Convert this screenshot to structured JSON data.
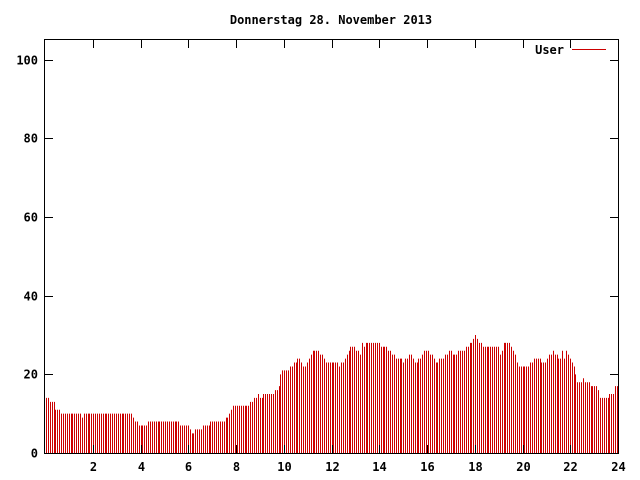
{
  "chart_data": {
    "type": "bar",
    "title": "Donnerstag 28. November 2013",
    "xlabel": "",
    "ylabel": "",
    "xlim": [
      0,
      24
    ],
    "ylim": [
      0,
      105
    ],
    "x_ticks": [
      2,
      4,
      6,
      8,
      10,
      12,
      14,
      16,
      18,
      20,
      22,
      24
    ],
    "y_ticks": [
      0,
      20,
      40,
      60,
      80,
      100
    ],
    "legend_position": "top-right",
    "grid": false,
    "colors": {
      "series": "#cc0000",
      "axis": "#000000",
      "background": "#ffffff"
    },
    "series": [
      {
        "name": "User",
        "sample_interval_hours": 0.0833,
        "values": [
          14,
          14,
          13,
          13,
          13,
          11,
          11,
          11,
          10,
          10,
          10,
          10,
          10,
          10,
          10,
          10,
          10,
          10,
          10,
          9,
          10,
          10,
          10,
          10,
          10,
          10,
          10,
          10,
          10,
          10,
          10,
          10,
          10,
          10,
          10,
          10,
          10,
          10,
          10,
          10,
          10,
          10,
          10,
          10,
          10,
          10,
          9,
          8,
          8,
          7,
          7,
          7,
          7,
          7,
          8,
          8,
          8,
          8,
          8,
          8,
          8,
          8,
          8,
          8,
          8,
          8,
          8,
          8,
          8,
          8,
          8,
          7,
          7,
          7,
          7,
          7,
          6,
          5,
          5,
          6,
          6,
          6,
          6,
          7,
          7,
          7,
          7,
          8,
          8,
          8,
          8,
          8,
          8,
          8,
          8,
          9,
          9,
          10,
          11,
          12,
          12,
          12,
          12,
          12,
          12,
          12,
          12,
          12,
          13,
          13,
          14,
          14,
          15,
          14,
          14,
          15,
          15,
          15,
          15,
          15,
          15,
          16,
          16,
          17,
          20,
          21,
          21,
          21,
          21,
          22,
          22,
          23,
          23,
          24,
          24,
          23,
          22,
          22,
          23,
          24,
          25,
          26,
          26,
          26,
          26,
          25,
          25,
          24,
          23,
          23,
          23,
          23,
          23,
          23,
          23,
          22,
          23,
          23,
          24,
          25,
          26,
          27,
          27,
          27,
          26,
          26,
          25,
          28,
          27,
          28,
          28,
          28,
          28,
          28,
          28,
          28,
          28,
          27,
          27,
          27,
          27,
          26,
          26,
          25,
          25,
          24,
          24,
          24,
          24,
          23,
          24,
          24,
          25,
          25,
          24,
          23,
          23,
          24,
          24,
          25,
          26,
          26,
          26,
          25,
          25,
          24,
          23,
          23,
          24,
          24,
          24,
          25,
          25,
          26,
          26,
          25,
          25,
          25,
          26,
          26,
          26,
          26,
          27,
          27,
          28,
          28,
          29,
          30,
          29,
          28,
          28,
          27,
          27,
          27,
          27,
          27,
          27,
          27,
          27,
          27,
          25,
          26,
          28,
          28,
          28,
          28,
          27,
          26,
          25,
          23,
          22,
          22,
          22,
          22,
          22,
          22,
          23,
          23,
          24,
          24,
          24,
          24,
          23,
          23,
          23,
          24,
          25,
          25,
          26,
          25,
          25,
          24,
          24,
          26,
          24,
          26,
          25,
          24,
          23,
          22,
          20,
          18,
          18,
          18,
          19,
          18,
          18,
          18,
          17,
          17,
          17,
          17,
          16,
          14,
          14,
          14,
          14,
          14,
          15,
          15,
          15,
          17,
          17
        ]
      }
    ]
  }
}
